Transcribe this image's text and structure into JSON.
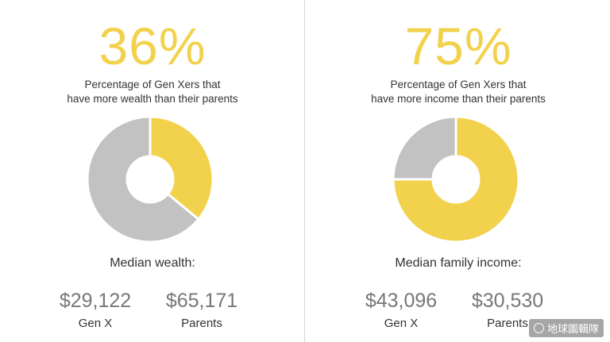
{
  "colors": {
    "accent": "#f2d24d",
    "muted": "#c2c2c2",
    "text": "#333333",
    "figure": "#777777"
  },
  "chart_data": [
    {
      "type": "pie",
      "headline": "36%",
      "caption": [
        "Percentage of Gen Xers that",
        "have more wealth than their parents"
      ],
      "slices": [
        {
          "name": "more wealth",
          "value": 36,
          "color": "#f2d24d"
        },
        {
          "name": "other",
          "value": 64,
          "color": "#c2c2c2"
        }
      ],
      "median_title": "Median wealth:",
      "stats": [
        {
          "value": "$29,122",
          "label": "Gen X"
        },
        {
          "value": "$65,171",
          "label": "Parents"
        }
      ]
    },
    {
      "type": "pie",
      "headline": "75%",
      "caption": [
        "Percentage of Gen Xers that",
        "have more income than their parents"
      ],
      "slices": [
        {
          "name": "more income",
          "value": 75,
          "color": "#f2d24d"
        },
        {
          "name": "other",
          "value": 25,
          "color": "#c2c2c2"
        }
      ],
      "median_title": "Median family income:",
      "stats": [
        {
          "value": "$43,096",
          "label": "Gen X"
        },
        {
          "value": "$30,530",
          "label": "Parents"
        }
      ]
    }
  ],
  "watermark": "地球圖輯隊"
}
